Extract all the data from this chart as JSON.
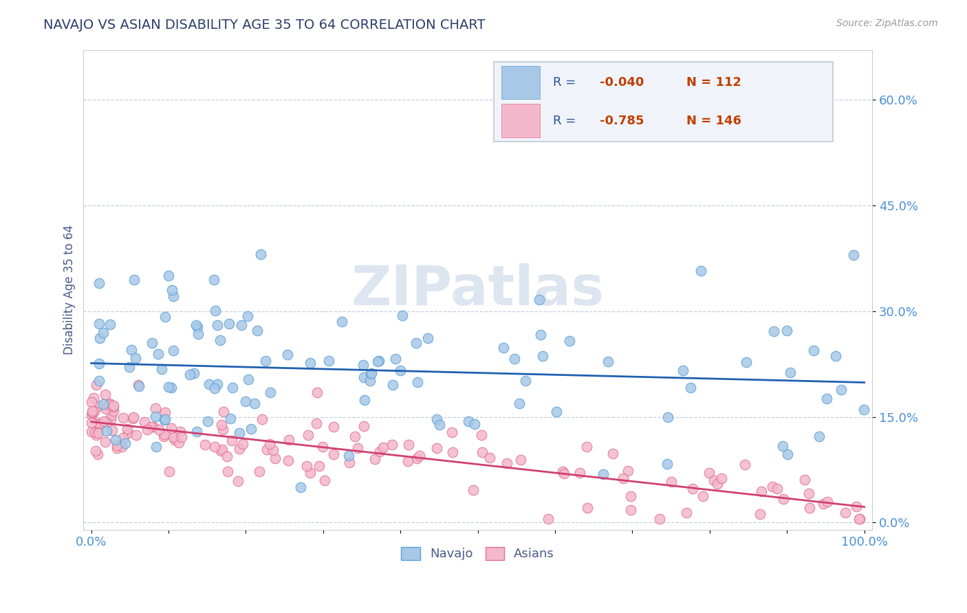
{
  "title": "NAVAJO VS ASIAN DISABILITY AGE 35 TO 64 CORRELATION CHART",
  "source": "Source: ZipAtlas.com",
  "ylabel": "Disability Age 35 to 64",
  "navajo_R": -0.04,
  "navajo_N": 112,
  "asian_R": -0.785,
  "asian_N": 146,
  "navajo_color": "#a8c8e8",
  "navajo_edge_color": "#5a9fd4",
  "asian_color": "#f4b8cc",
  "asian_edge_color": "#e07090",
  "navajo_line_color": "#2060b0",
  "asian_line_color": "#d04070",
  "background_color": "#ffffff",
  "grid_color": "#b8c4d8",
  "watermark": "ZIPatlas",
  "watermark_color": "#dde5f0",
  "title_color": "#2c3e6b",
  "axis_label_color": "#4a5a8a",
  "tick_color": "#4a90d9",
  "legend_box_color": "#f0f4fa",
  "legend_border_color": "#c0c8d8",
  "legend_r_color": "#c04000",
  "legend_n_color": "#c04000",
  "legend_label_color": "#2c4fa0"
}
